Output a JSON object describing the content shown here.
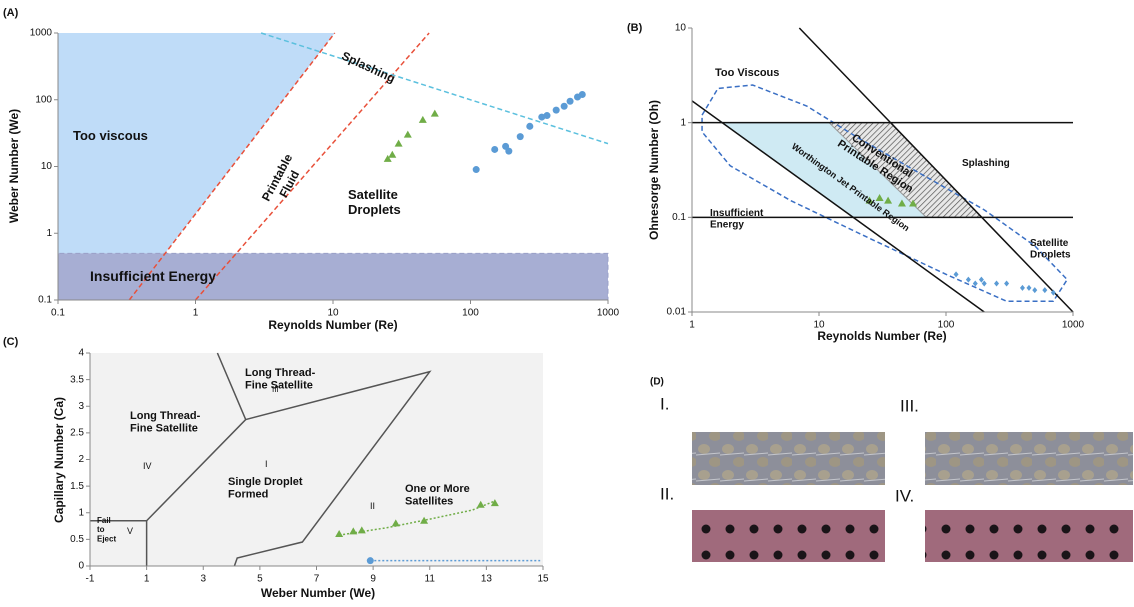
{
  "chart_data": [
    {
      "type": "scatter",
      "label": "(A)",
      "x_label": "Reynolds Number (Re)",
      "y_label": "Weber Number (We)",
      "xscale": "log",
      "yscale": "log",
      "xlim": [
        0.1,
        1000
      ],
      "ylim": [
        0.1,
        1000
      ],
      "xticks": [
        0.1,
        1,
        10,
        100,
        1000
      ],
      "yticks": [
        0.1,
        1,
        10,
        100,
        1000
      ],
      "boundaries": [
        {
          "fill": "#a9d0f5",
          "points": [
            [
              0.1,
              0.5
            ],
            [
              0.1,
              1000
            ],
            [
              10.3,
              1000
            ],
            [
              0.6,
              0.5
            ]
          ]
        },
        {
          "fill": "#8a93c4",
          "color": "#9aa0c8",
          "dash": "dash",
          "points": [
            [
              0.1,
              0.1
            ],
            [
              0.1,
              0.5
            ],
            [
              1000,
              0.5
            ],
            [
              1000,
              0.1
            ]
          ]
        },
        {
          "color": "#e8503a",
          "dash": "dash",
          "points": [
            [
              0.33,
              0.1
            ],
            [
              10.3,
              1000
            ]
          ]
        },
        {
          "color": "#e8503a",
          "dash": "dash",
          "points": [
            [
              1,
              0.1
            ],
            [
              50,
              1000
            ]
          ]
        },
        {
          "color": "#5bc0de",
          "dash": "dash",
          "points": [
            [
              3,
              1000
            ],
            [
              1000,
              22
            ]
          ]
        }
      ],
      "series": [
        {
          "color": "#5b9bd5",
          "marker": "circle",
          "x": [
            110,
            150,
            180,
            190,
            230,
            270,
            330,
            360,
            420,
            480,
            530,
            600,
            650
          ],
          "values": [
            9,
            18,
            20,
            17,
            28,
            40,
            55,
            58,
            70,
            80,
            95,
            110,
            120
          ]
        },
        {
          "color": "#70ad47",
          "marker": "triangle",
          "x": [
            25,
            27,
            30,
            35,
            45,
            55
          ],
          "values": [
            13,
            15,
            22,
            30,
            50,
            62
          ]
        }
      ],
      "annotations": [
        {
          "text": [
            "Too viscous"
          ]
        },
        {
          "text": [
            "Printable",
            "Fluid"
          ]
        },
        {
          "text": [
            "Splashing"
          ]
        },
        {
          "text": [
            "Satellite",
            "Droplets"
          ]
        },
        {
          "text": [
            "Insufficient Energy"
          ]
        }
      ]
    },
    {
      "type": "scatter",
      "label": "(B)",
      "x_label": "Reynolds Number (Re)",
      "y_label": "Ohnesorge Number (Oh)",
      "xscale": "log",
      "yscale": "log",
      "xlim": [
        1,
        1000
      ],
      "ylim": [
        0.01,
        10
      ],
      "xticks": [
        1,
        10,
        100,
        1000
      ],
      "yticks": [
        0.01,
        0.1,
        1,
        10
      ],
      "boundaries": [
        {
          "fill": "#bfe3ef",
          "points": [
            [
              1.73,
              1
            ],
            [
              37,
              1
            ],
            [
              190,
              0.1
            ],
            [
              18.5,
              0.1
            ]
          ]
        },
        {
          "fill": "#9a9a9a",
          "dash": "hatch",
          "points": [
            [
              12,
              1
            ],
            [
              37,
              1
            ],
            [
              190,
              0.1
            ],
            [
              70,
              0.1
            ]
          ]
        },
        {
          "color": "#3a6fc4",
          "dash": "dash",
          "points": [
            [
              1.2,
              1.2
            ],
            [
              1.6,
              2.3
            ],
            [
              3,
              2.5
            ],
            [
              8,
              1.5
            ],
            [
              20,
              0.7
            ],
            [
              60,
              0.3
            ],
            [
              200,
              0.12
            ],
            [
              500,
              0.05
            ],
            [
              900,
              0.022
            ],
            [
              700,
              0.013
            ],
            [
              300,
              0.013
            ],
            [
              100,
              0.025
            ],
            [
              25,
              0.06
            ],
            [
              6,
              0.15
            ],
            [
              2,
              0.35
            ],
            [
              1.2,
              0.8
            ],
            [
              1.2,
              1.2
            ]
          ]
        },
        {
          "color": "#111111",
          "points": [
            [
              1,
              1
            ],
            [
              1000,
              1
            ]
          ]
        },
        {
          "color": "#111111",
          "points": [
            [
              1,
              0.1
            ],
            [
              1000,
              0.1
            ]
          ]
        },
        {
          "color": "#111111",
          "points": [
            [
              1,
              1.7
            ],
            [
              200,
              0.01
            ]
          ]
        },
        {
          "color": "#111111",
          "points": [
            [
              7,
              10
            ],
            [
              1000,
              0.01
            ]
          ]
        }
      ],
      "series": [
        {
          "color": "#5b9bd5",
          "marker": "diamond",
          "x": [
            120,
            150,
            170,
            190,
            200,
            250,
            300,
            400,
            450,
            500,
            600,
            700
          ],
          "values": [
            0.025,
            0.022,
            0.02,
            0.022,
            0.02,
            0.02,
            0.02,
            0.018,
            0.018,
            0.017,
            0.017,
            0.016
          ]
        },
        {
          "color": "#70ad47",
          "marker": "triangle",
          "x": [
            25,
            30,
            35,
            45,
            55
          ],
          "values": [
            0.15,
            0.16,
            0.15,
            0.14,
            0.14
          ]
        }
      ],
      "annotations": [
        {
          "text": [
            "Too Viscous"
          ]
        },
        {
          "text": [
            "Splashing"
          ]
        },
        {
          "text": [
            "Insufficient",
            "Energy"
          ]
        },
        {
          "text": [
            "Satellite",
            "Droplets"
          ]
        },
        {
          "text": [
            "Conventional",
            "Printable Region"
          ]
        },
        {
          "text": [
            "Worthington Jet Printable Region"
          ]
        }
      ]
    },
    {
      "type": "scatter",
      "label": "(C)",
      "x_label": "Weber Number (We)",
      "y_label": "Capillary Number (Ca)",
      "xscale": "linear",
      "yscale": "linear",
      "xlim": [
        -1,
        15
      ],
      "ylim": [
        0,
        4
      ],
      "background": "#f2f2f2",
      "xticks": [
        -1,
        1,
        3,
        5,
        7,
        9,
        11,
        13,
        15
      ],
      "yticks": [
        0,
        0.5,
        1,
        1.5,
        2,
        2.5,
        3,
        3.5,
        4
      ],
      "boundaries": [
        {
          "color": "#555555",
          "points": [
            [
              -1,
              0.85
            ],
            [
              1,
              0.85
            ],
            [
              1,
              0
            ]
          ]
        },
        {
          "color": "#555555",
          "points": [
            [
              1,
              0.85
            ],
            [
              4.5,
              2.75
            ],
            [
              3.5,
              4
            ]
          ]
        },
        {
          "color": "#555555",
          "points": [
            [
              4.5,
              2.75
            ],
            [
              11,
              3.65
            ],
            [
              6.5,
              0.45
            ],
            [
              4.2,
              0.15
            ],
            [
              4.1,
              0
            ]
          ]
        },
        {
          "color": "#70ad47",
          "dash": "dot",
          "points": [
            [
              7.8,
              0.58
            ],
            [
              9.5,
              0.72
            ],
            [
              11,
              0.88
            ],
            [
              12.5,
              1.05
            ],
            [
              13.3,
              1.22
            ]
          ]
        },
        {
          "color": "#5b9bd5",
          "dash": "dot",
          "points": [
            [
              8.9,
              0.1
            ],
            [
              14.9,
              0.1
            ]
          ]
        }
      ],
      "series": [
        {
          "color": "#70ad47",
          "marker": "triangle",
          "x": [
            7.8,
            8.3,
            8.6,
            9.8,
            10.8,
            12.8,
            13.3
          ],
          "values": [
            0.6,
            0.65,
            0.67,
            0.8,
            0.85,
            1.15,
            1.18
          ]
        },
        {
          "color": "#5b9bd5",
          "marker": "circle",
          "x": [
            8.9
          ],
          "values": [
            0.1
          ]
        }
      ],
      "annotations": [
        {
          "text": [
            "Long Thread-",
            "Fine Satellite"
          ]
        },
        {
          "text": [
            "III"
          ]
        },
        {
          "text": [
            "Long Thread-",
            "Fine Satellite"
          ]
        },
        {
          "text": [
            "IV"
          ]
        },
        {
          "text": [
            "I"
          ]
        },
        {
          "text": [
            "Single Droplet",
            "Formed"
          ]
        },
        {
          "text": [
            "II"
          ]
        },
        {
          "text": [
            "One or More",
            "Satellites"
          ]
        },
        {
          "text": [
            "V"
          ]
        },
        {
          "text": [
            "Fail",
            "to",
            "Eject"
          ]
        }
      ]
    }
  ],
  "panel_d": {
    "label": "(D)",
    "images": [
      {
        "label": "I."
      },
      {
        "label": "II."
      },
      {
        "label": "III."
      },
      {
        "label": "IV."
      }
    ]
  }
}
